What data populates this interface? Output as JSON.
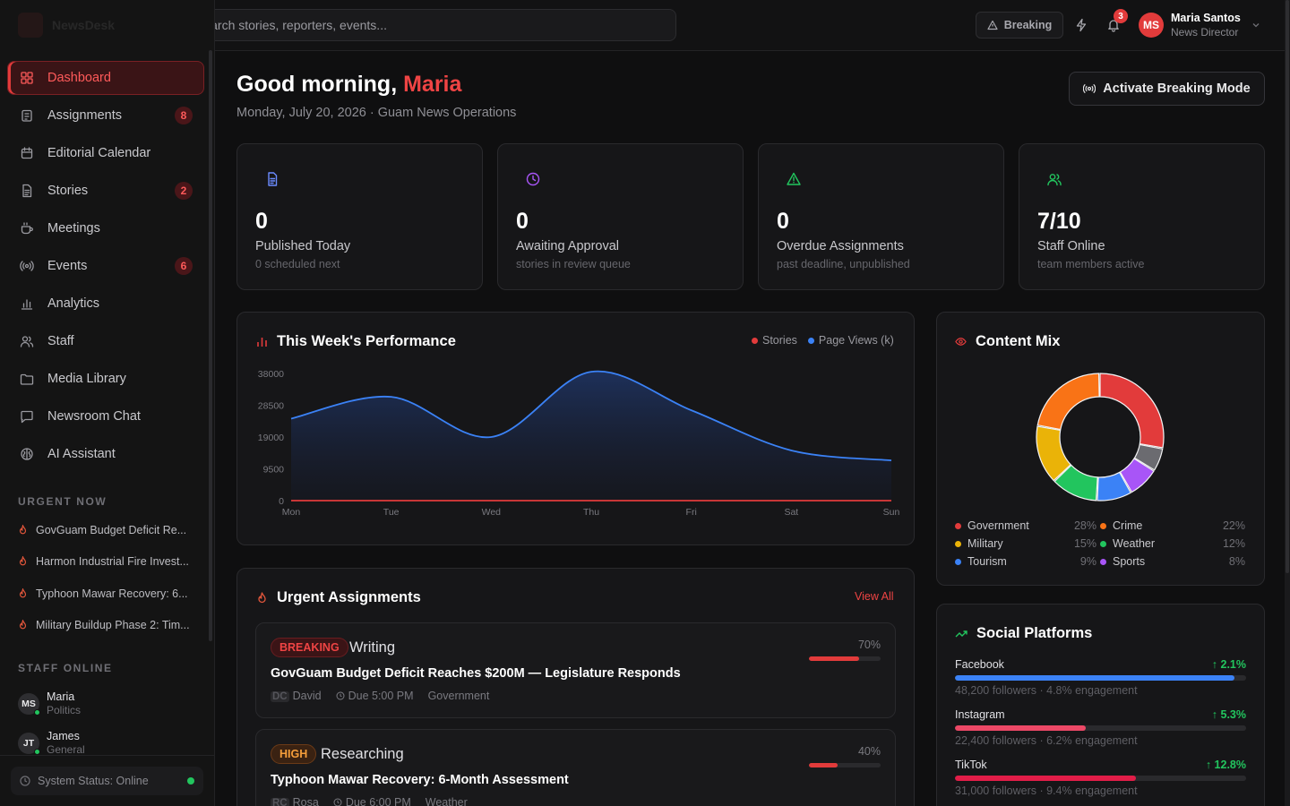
{
  "sidebar": {
    "brand": "NewsDesk",
    "nav": [
      {
        "label": "Dashboard",
        "icon": "dashboard-icon",
        "badge": "",
        "active": true
      },
      {
        "label": "Assignments",
        "icon": "clipboard-icon",
        "badge": "8"
      },
      {
        "label": "Editorial Calendar",
        "icon": "calendar-icon",
        "badge": ""
      },
      {
        "label": "Stories",
        "icon": "document-icon",
        "badge": "2"
      },
      {
        "label": "Meetings",
        "icon": "coffee-icon",
        "badge": ""
      },
      {
        "label": "Events",
        "icon": "broadcast-icon",
        "badge": "6"
      },
      {
        "label": "Analytics",
        "icon": "bar-chart-icon",
        "badge": ""
      },
      {
        "label": "Staff",
        "icon": "users-icon",
        "badge": ""
      },
      {
        "label": "Media Library",
        "icon": "folder-icon",
        "badge": ""
      },
      {
        "label": "Newsroom Chat",
        "icon": "chat-icon",
        "badge": ""
      },
      {
        "label": "AI Assistant",
        "icon": "brain-icon",
        "badge": ""
      }
    ],
    "urgent_title": "URGENT NOW",
    "urgent": [
      "GovGuam Budget Deficit Re...",
      "Harmon Industrial Fire Invest...",
      "Typhoon Mawar Recovery: 6...",
      "Military Buildup Phase 2: Tim..."
    ],
    "staff_title": "STAFF ONLINE",
    "staff": [
      {
        "initials": "MS",
        "name": "Maria",
        "role": "Politics"
      },
      {
        "initials": "JT",
        "name": "James",
        "role": "General"
      }
    ],
    "system_status": "System Status: Online"
  },
  "topbar": {
    "search_placeholder": "Search stories, reporters, events...",
    "breaking_label": "Breaking",
    "notif_count": "3",
    "user": {
      "initials": "MS",
      "name": "Maria Santos",
      "role": "News Director"
    }
  },
  "header": {
    "greeting": "Good morning,",
    "name": "Maria",
    "subtitle": "Monday, July 20, 2026 · Guam News Operations",
    "breaking_mode_label": "Activate Breaking Mode"
  },
  "stats": [
    {
      "icon": "document-icon",
      "color": "#6b8cff",
      "value": "0",
      "label": "Published Today",
      "sub": "0 scheduled next"
    },
    {
      "icon": "clock-icon",
      "color": "#a855f7",
      "value": "0",
      "label": "Awaiting Approval",
      "sub": "stories in review queue"
    },
    {
      "icon": "warning-icon",
      "color": "#22c55e",
      "value": "0",
      "label": "Overdue Assignments",
      "sub": "past deadline, unpublished"
    },
    {
      "icon": "users-icon",
      "color": "#22c55e",
      "value": "7/10",
      "label": "Staff Online",
      "sub": "team members active"
    }
  ],
  "performance": {
    "title": "This Week's Performance",
    "legend": [
      "Stories",
      "Page Views (k)"
    ],
    "colors": {
      "stories": "#e23b3b",
      "views": "#3b82f6"
    }
  },
  "chart_data": {
    "type": "area",
    "categories": [
      "Mon",
      "Tue",
      "Wed",
      "Thu",
      "Fri",
      "Sat",
      "Sun"
    ],
    "yticks": [
      "0",
      "9500",
      "19000",
      "28500",
      "38000"
    ],
    "ylim": [
      0,
      38000
    ],
    "series": [
      {
        "name": "Stories",
        "values": [
          0,
          0,
          0,
          0,
          0,
          0,
          0
        ]
      },
      {
        "name": "Page Views (k)",
        "values": [
          24500,
          31000,
          19000,
          38500,
          27000,
          15000,
          12000
        ]
      }
    ]
  },
  "content_mix": {
    "title": "Content Mix",
    "items": [
      {
        "name": "Government",
        "pct": "28%",
        "value": 28,
        "color": "#e23b3b"
      },
      {
        "name": "Crime",
        "pct": "22%",
        "value": 22,
        "color": "#f97316"
      },
      {
        "name": "Military",
        "pct": "15%",
        "value": 15,
        "color": "#eab308"
      },
      {
        "name": "Weather",
        "pct": "12%",
        "value": 12,
        "color": "#22c55e"
      },
      {
        "name": "Tourism",
        "pct": "9%",
        "value": 9,
        "color": "#3b82f6"
      },
      {
        "name": "Sports",
        "pct": "8%",
        "value": 8,
        "color": "#a855f7"
      }
    ],
    "other": {
      "value": 6,
      "color": "#6b6b70"
    }
  },
  "urgent_assignments": {
    "title": "Urgent Assignments",
    "view_all": "View All",
    "items": [
      {
        "tag": "BREAKING",
        "tag_style": "breaking",
        "status": "Writing",
        "title": "GovGuam Budget Deficit Reaches $200M — Legislature Responds",
        "initials": "DC",
        "reporter": "David",
        "due": "Due 5:00 PM",
        "beat": "Government",
        "pct": "70%",
        "progress": 0.7
      },
      {
        "tag": "HIGH",
        "tag_style": "high",
        "status": "Researching",
        "title": "Typhoon Mawar Recovery: 6-Month Assessment",
        "initials": "RC",
        "reporter": "Rosa",
        "due": "Due 6:00 PM",
        "beat": "Weather",
        "pct": "40%",
        "progress": 0.4
      }
    ]
  },
  "social": {
    "title": "Social Platforms",
    "items": [
      {
        "name": "Facebook",
        "growth": "↑ 2.1%",
        "meta": "48,200 followers · 4.8% engagement",
        "progress": 0.96,
        "color": "#3b82f6"
      },
      {
        "name": "Instagram",
        "growth": "↑ 5.3%",
        "meta": "22,400 followers · 6.2% engagement",
        "progress": 0.45,
        "color": "#ec4866"
      },
      {
        "name": "TikTok",
        "growth": "↑ 12.8%",
        "meta": "31,000 followers · 9.4% engagement",
        "progress": 0.62,
        "color": "#e11d48"
      }
    ]
  }
}
